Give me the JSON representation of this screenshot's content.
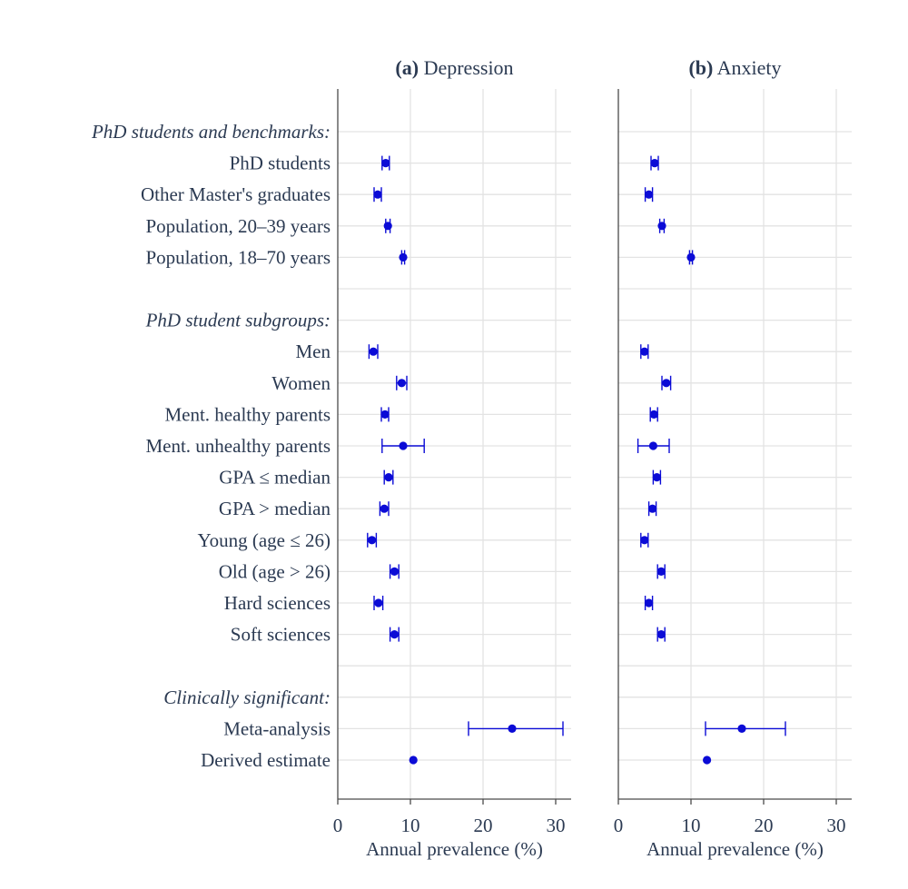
{
  "chart_data": {
    "type": "forest",
    "row_labels": [
      {
        "text": "PhD students and benchmarks:",
        "kind": "group"
      },
      {
        "text": "PhD students",
        "kind": "item"
      },
      {
        "text": "Other Master's graduates",
        "kind": "item"
      },
      {
        "text": "Population, 20–39 years",
        "kind": "item"
      },
      {
        "text": "Population, 18–70 years",
        "kind": "item"
      },
      {
        "text": "",
        "kind": "spacer"
      },
      {
        "text": "PhD student subgroups:",
        "kind": "group"
      },
      {
        "text": "Men",
        "kind": "item"
      },
      {
        "text": "Women",
        "kind": "item"
      },
      {
        "text": "Ment. healthy parents",
        "kind": "item"
      },
      {
        "text": "Ment. unhealthy parents",
        "kind": "item"
      },
      {
        "text": "GPA ≤ median",
        "kind": "item"
      },
      {
        "text": "GPA > median",
        "kind": "item"
      },
      {
        "text": "Young (age ≤ 26)",
        "kind": "item"
      },
      {
        "text": "Old (age > 26)",
        "kind": "item"
      },
      {
        "text": "Hard sciences",
        "kind": "item"
      },
      {
        "text": "Soft sciences",
        "kind": "item"
      },
      {
        "text": "",
        "kind": "spacer"
      },
      {
        "text": "Clinically significant:",
        "kind": "group"
      },
      {
        "text": "Meta-analysis",
        "kind": "item"
      },
      {
        "text": "Derived estimate",
        "kind": "item"
      }
    ],
    "xlim": [
      0,
      32
    ],
    "xticks": [
      0,
      10,
      20,
      30
    ],
    "grid": true,
    "marker_color": "#0b0bd6",
    "panels": [
      {
        "title_prefix": "(a)",
        "title": "Depression",
        "xlabel": "Annual prevalence (%)",
        "points": [
          {
            "row": 1,
            "value": 6.6,
            "lo": 6.1,
            "hi": 7.1
          },
          {
            "row": 2,
            "value": 5.5,
            "lo": 5.0,
            "hi": 6.0
          },
          {
            "row": 3,
            "value": 6.9,
            "lo": 6.6,
            "hi": 7.2
          },
          {
            "row": 4,
            "value": 9.0,
            "lo": 8.8,
            "hi": 9.2
          },
          {
            "row": 7,
            "value": 4.9,
            "lo": 4.3,
            "hi": 5.5
          },
          {
            "row": 8,
            "value": 8.8,
            "lo": 8.1,
            "hi": 9.5
          },
          {
            "row": 9,
            "value": 6.5,
            "lo": 6.0,
            "hi": 7.0
          },
          {
            "row": 10,
            "value": 9.0,
            "lo": 6.1,
            "hi": 11.9
          },
          {
            "row": 11,
            "value": 7.0,
            "lo": 6.4,
            "hi": 7.6
          },
          {
            "row": 12,
            "value": 6.4,
            "lo": 5.8,
            "hi": 7.0
          },
          {
            "row": 13,
            "value": 4.7,
            "lo": 4.1,
            "hi": 5.3
          },
          {
            "row": 14,
            "value": 7.8,
            "lo": 7.2,
            "hi": 8.4
          },
          {
            "row": 15,
            "value": 5.6,
            "lo": 5.0,
            "hi": 6.2
          },
          {
            "row": 16,
            "value": 7.8,
            "lo": 7.2,
            "hi": 8.4
          },
          {
            "row": 19,
            "value": 24.0,
            "lo": 18.0,
            "hi": 31.0
          },
          {
            "row": 20,
            "value": 10.4,
            "lo": 10.4,
            "hi": 10.4
          }
        ]
      },
      {
        "title_prefix": "(b)",
        "title": "Anxiety",
        "xlabel": "Annual prevalence (%)",
        "points": [
          {
            "row": 1,
            "value": 5.0,
            "lo": 4.5,
            "hi": 5.5
          },
          {
            "row": 2,
            "value": 4.2,
            "lo": 3.7,
            "hi": 4.7
          },
          {
            "row": 3,
            "value": 6.0,
            "lo": 5.7,
            "hi": 6.3
          },
          {
            "row": 4,
            "value": 10.0,
            "lo": 9.8,
            "hi": 10.2
          },
          {
            "row": 7,
            "value": 3.6,
            "lo": 3.1,
            "hi": 4.1
          },
          {
            "row": 8,
            "value": 6.6,
            "lo": 6.0,
            "hi": 7.2
          },
          {
            "row": 9,
            "value": 4.9,
            "lo": 4.4,
            "hi": 5.4
          },
          {
            "row": 10,
            "value": 4.8,
            "lo": 2.7,
            "hi": 7.0
          },
          {
            "row": 11,
            "value": 5.3,
            "lo": 4.8,
            "hi": 5.8
          },
          {
            "row": 12,
            "value": 4.7,
            "lo": 4.2,
            "hi": 5.2
          },
          {
            "row": 13,
            "value": 3.6,
            "lo": 3.1,
            "hi": 4.1
          },
          {
            "row": 14,
            "value": 5.9,
            "lo": 5.4,
            "hi": 6.4
          },
          {
            "row": 15,
            "value": 4.2,
            "lo": 3.7,
            "hi": 4.7
          },
          {
            "row": 16,
            "value": 5.9,
            "lo": 5.4,
            "hi": 6.4
          },
          {
            "row": 19,
            "value": 17.0,
            "lo": 12.0,
            "hi": 23.0
          },
          {
            "row": 20,
            "value": 12.2,
            "lo": 12.2,
            "hi": 12.2
          }
        ]
      }
    ]
  }
}
